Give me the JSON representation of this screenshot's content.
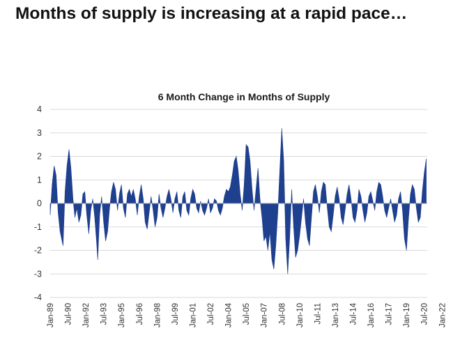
{
  "headline": "Months of supply is increasing at a rapid pace…",
  "chart_data": {
    "type": "area",
    "title": "6 Month Change in Months of Supply",
    "xlabel": "",
    "ylabel": "",
    "ylim": [
      -4,
      4
    ],
    "yticks": [
      -4,
      -3,
      -2,
      -1,
      0,
      1,
      2,
      3,
      4
    ],
    "grid": true,
    "color": "#1f3f8f",
    "xticks": [
      "Jan-89",
      "Jul-90",
      "Jan-92",
      "Jul-93",
      "Jan-95",
      "Jul-96",
      "Jan-98",
      "Jul-99",
      "Jan-01",
      "Jul-02",
      "Jan-04",
      "Jul-05",
      "Jan-07",
      "Jul-08",
      "Jan-10",
      "Jul-11",
      "Jan-13",
      "Jul-14",
      "Jan-16",
      "Jul-17",
      "Jan-19",
      "Jul-20",
      "Jan-22"
    ],
    "series": [
      {
        "x_start": "1989-01",
        "values": [
          [
            0,
            -0.5
          ],
          [
            2,
            0.8
          ],
          [
            4,
            1.6
          ],
          [
            6,
            1.2
          ],
          [
            8,
            -0.4
          ],
          [
            10,
            -1.2
          ],
          [
            12,
            -1.6
          ],
          [
            13,
            -1.8
          ],
          [
            15,
            0.5
          ],
          [
            17,
            1.6
          ],
          [
            19,
            2.3
          ],
          [
            21,
            1.5
          ],
          [
            23,
            0.2
          ],
          [
            25,
            -0.6
          ],
          [
            27,
            -0.2
          ],
          [
            29,
            -0.8
          ],
          [
            31,
            -0.5
          ],
          [
            33,
            0.4
          ],
          [
            35,
            0.5
          ],
          [
            37,
            -0.5
          ],
          [
            39,
            -1.3
          ],
          [
            41,
            -0.3
          ],
          [
            43,
            0.2
          ],
          [
            45,
            -0.6
          ],
          [
            47,
            -1.7
          ],
          [
            48,
            -2.4
          ],
          [
            50,
            -0.5
          ],
          [
            52,
            0.3
          ],
          [
            54,
            -0.8
          ],
          [
            56,
            -1.6
          ],
          [
            58,
            -1.2
          ],
          [
            60,
            -0.2
          ],
          [
            62,
            0.5
          ],
          [
            64,
            0.9
          ],
          [
            66,
            0.6
          ],
          [
            68,
            -0.3
          ],
          [
            70,
            0.4
          ],
          [
            72,
            0.8
          ],
          [
            74,
            -0.2
          ],
          [
            76,
            -0.6
          ],
          [
            78,
            0.4
          ],
          [
            80,
            0.6
          ],
          [
            82,
            0.3
          ],
          [
            84,
            0.6
          ],
          [
            86,
            0.2
          ],
          [
            88,
            -0.5
          ],
          [
            90,
            0.3
          ],
          [
            92,
            0.8
          ],
          [
            94,
            0.2
          ],
          [
            96,
            -0.8
          ],
          [
            98,
            -1.1
          ],
          [
            100,
            -0.4
          ],
          [
            102,
            0.3
          ],
          [
            104,
            -0.3
          ],
          [
            106,
            -1.0
          ],
          [
            108,
            -0.6
          ],
          [
            110,
            0.4
          ],
          [
            112,
            -0.2
          ],
          [
            114,
            -0.6
          ],
          [
            116,
            -0.2
          ],
          [
            118,
            0.3
          ],
          [
            120,
            0.6
          ],
          [
            122,
            0.2
          ],
          [
            124,
            -0.4
          ],
          [
            126,
            0.2
          ],
          [
            128,
            0.5
          ],
          [
            130,
            -0.3
          ],
          [
            132,
            -0.6
          ],
          [
            134,
            0.3
          ],
          [
            136,
            0.5
          ],
          [
            138,
            -0.3
          ],
          [
            140,
            -0.5
          ],
          [
            142,
            0.2
          ],
          [
            144,
            0.6
          ],
          [
            146,
            0.4
          ],
          [
            148,
            -0.2
          ],
          [
            150,
            -0.4
          ],
          [
            152,
            0.1
          ],
          [
            154,
            -0.3
          ],
          [
            156,
            -0.5
          ],
          [
            158,
            -0.2
          ],
          [
            160,
            0.2
          ],
          [
            162,
            -0.4
          ],
          [
            164,
            -0.2
          ],
          [
            166,
            0.2
          ],
          [
            168,
            0.1
          ],
          [
            170,
            -0.3
          ],
          [
            172,
            -0.5
          ],
          [
            174,
            -0.2
          ],
          [
            176,
            0.3
          ],
          [
            178,
            0.6
          ],
          [
            180,
            0.5
          ],
          [
            182,
            0.7
          ],
          [
            184,
            1.2
          ],
          [
            186,
            1.8
          ],
          [
            188,
            2.0
          ],
          [
            190,
            1.4
          ],
          [
            192,
            0.4
          ],
          [
            194,
            -0.3
          ],
          [
            196,
            0.8
          ],
          [
            198,
            2.5
          ],
          [
            200,
            2.4
          ],
          [
            202,
            1.8
          ],
          [
            204,
            0.6
          ],
          [
            206,
            -0.3
          ],
          [
            208,
            0.6
          ],
          [
            210,
            1.5
          ],
          [
            212,
            0.2
          ],
          [
            214,
            -0.6
          ],
          [
            216,
            -1.6
          ],
          [
            218,
            -1.4
          ],
          [
            220,
            -2.0
          ],
          [
            222,
            -1.2
          ],
          [
            224,
            -2.4
          ],
          [
            226,
            -2.8
          ],
          [
            228,
            -1.8
          ],
          [
            230,
            -0.4
          ],
          [
            232,
            1.4
          ],
          [
            234,
            3.2
          ],
          [
            236,
            1.8
          ],
          [
            238,
            -1.5
          ],
          [
            240,
            -3.0
          ],
          [
            242,
            -1.5
          ],
          [
            244,
            0.6
          ],
          [
            246,
            -1.0
          ],
          [
            248,
            -2.3
          ],
          [
            250,
            -2.0
          ],
          [
            252,
            -1.4
          ],
          [
            254,
            -0.6
          ],
          [
            256,
            0.2
          ],
          [
            258,
            -0.8
          ],
          [
            260,
            -1.5
          ],
          [
            262,
            -1.8
          ],
          [
            264,
            -0.6
          ],
          [
            266,
            0.5
          ],
          [
            268,
            0.8
          ],
          [
            270,
            0.3
          ],
          [
            272,
            -0.4
          ],
          [
            274,
            0.5
          ],
          [
            276,
            0.9
          ],
          [
            278,
            0.8
          ],
          [
            280,
            -0.2
          ],
          [
            282,
            -1.0
          ],
          [
            284,
            -1.2
          ],
          [
            286,
            -0.5
          ],
          [
            288,
            0.3
          ],
          [
            290,
            0.7
          ],
          [
            292,
            0.2
          ],
          [
            294,
            -0.6
          ],
          [
            296,
            -0.9
          ],
          [
            298,
            -0.3
          ],
          [
            300,
            0.4
          ],
          [
            302,
            0.8
          ],
          [
            304,
            0.2
          ],
          [
            306,
            -0.6
          ],
          [
            308,
            -0.8
          ],
          [
            310,
            -0.3
          ],
          [
            312,
            0.6
          ],
          [
            314,
            0.3
          ],
          [
            316,
            -0.3
          ],
          [
            318,
            -0.8
          ],
          [
            320,
            -0.4
          ],
          [
            322,
            0.3
          ],
          [
            324,
            0.5
          ],
          [
            326,
            0.1
          ],
          [
            328,
            -0.3
          ],
          [
            330,
            0.5
          ],
          [
            332,
            0.9
          ],
          [
            334,
            0.8
          ],
          [
            336,
            0.3
          ],
          [
            338,
            -0.3
          ],
          [
            340,
            -0.6
          ],
          [
            342,
            -0.2
          ],
          [
            344,
            0.2
          ],
          [
            346,
            -0.3
          ],
          [
            348,
            -0.8
          ],
          [
            350,
            -0.5
          ],
          [
            352,
            0.2
          ],
          [
            354,
            0.5
          ],
          [
            356,
            -0.3
          ],
          [
            358,
            -1.5
          ],
          [
            360,
            -2.0
          ],
          [
            362,
            -0.7
          ],
          [
            364,
            0.4
          ],
          [
            366,
            0.8
          ],
          [
            368,
            0.6
          ],
          [
            370,
            -0.2
          ],
          [
            372,
            -0.8
          ],
          [
            374,
            -0.6
          ],
          [
            376,
            0.5
          ],
          [
            378,
            1.3
          ],
          [
            380,
            1.9
          ]
        ]
      }
    ]
  }
}
